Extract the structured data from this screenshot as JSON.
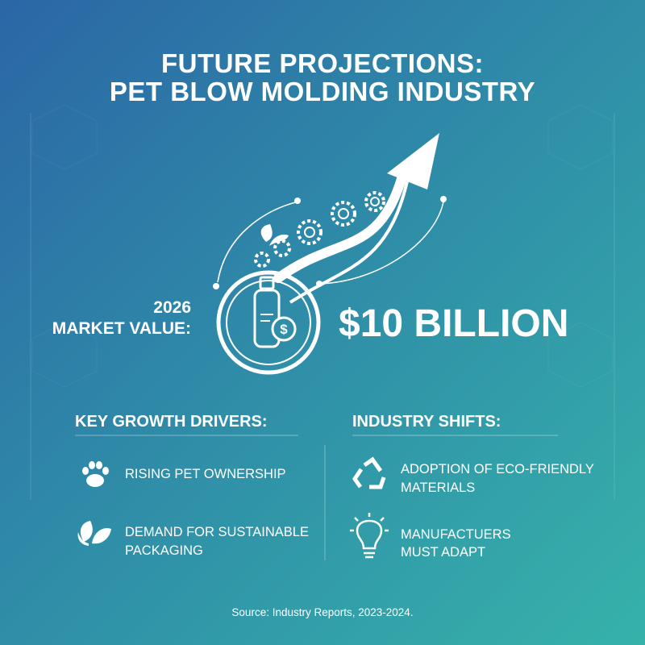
{
  "header": {
    "title": [
      "FUTURE PROJECTIONS:",
      "PET BLOW MOLDING INDUSTRY"
    ]
  },
  "market": {
    "label": [
      "2026",
      "MARKET VALUE:"
    ],
    "value": "$10 BILLION"
  },
  "drivers": {
    "heading": "KEY GROWTH DRIVERS:",
    "items": [
      [
        "RISING PET OWNERSHIP"
      ],
      [
        "DEMAND FOR SUSTAINABLE",
        "PACKAGING"
      ]
    ]
  },
  "shifts": {
    "heading": "INDUSTRY SHIFTS:",
    "items": [
      [
        "ADOPTION OF ECO-FRIENDLY",
        "MATERIALS"
      ],
      [
        "MANUFACTUERS",
        "MUST ADAPT"
      ]
    ]
  },
  "source": "Source: Industry Reports, 2023-2024."
}
